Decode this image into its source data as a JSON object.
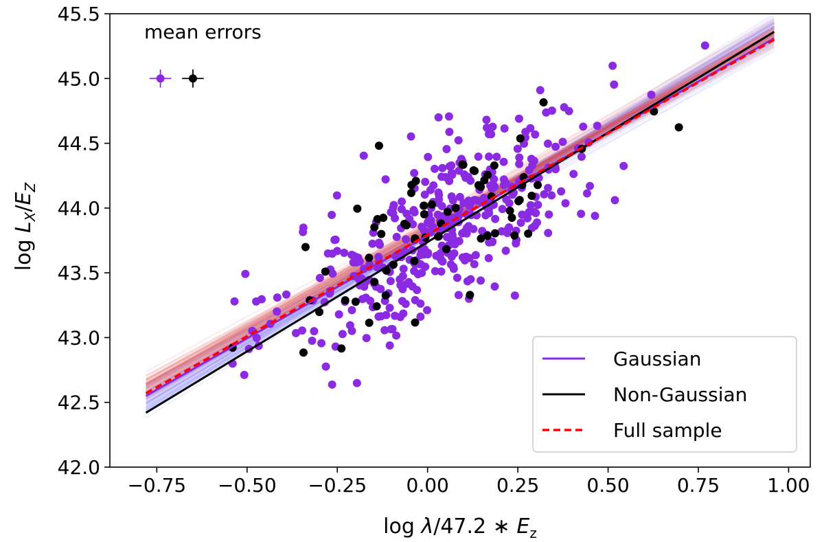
{
  "chart_data": {
    "type": "scatter",
    "xlabel_parts": [
      "log ",
      "λ",
      "/47.2 ∗ ",
      "E",
      "z"
    ],
    "ylabel_parts": [
      "log ",
      "L",
      "X",
      "/",
      "E",
      "Z"
    ],
    "xlim": [
      -0.88,
      1.06
    ],
    "ylim": [
      42.0,
      45.5
    ],
    "x_ticks": [
      -0.75,
      -0.5,
      -0.25,
      0.0,
      0.25,
      0.5,
      0.75,
      1.0
    ],
    "x_tick_labels": [
      "−0.75",
      "−0.50",
      "−0.25",
      "0.00",
      "0.25",
      "0.50",
      "0.75",
      "1.00"
    ],
    "y_ticks": [
      42.0,
      42.5,
      43.0,
      43.5,
      44.0,
      44.5,
      45.0,
      45.5
    ],
    "y_tick_labels": [
      "42.0",
      "42.5",
      "43.0",
      "43.5",
      "44.0",
      "44.5",
      "45.0",
      "45.5"
    ],
    "annotation": "mean errors",
    "mean_errors": [
      {
        "series": "Gaussian",
        "x": -0.74,
        "y": 45.0,
        "xerr": 0.03,
        "yerr": 0.07,
        "color": "#8a2be2"
      },
      {
        "series": "Non-Gaussian",
        "x": -0.65,
        "y": 45.0,
        "xerr": 0.03,
        "yerr": 0.07,
        "color": "#000000"
      }
    ],
    "legend": {
      "position": "lower-right",
      "entries": [
        {
          "label": "Gaussian",
          "color": "#8a2be2",
          "style": "solid"
        },
        {
          "label": "Non-Gaussian",
          "color": "#000000",
          "style": "solid"
        },
        {
          "label": "Full sample",
          "color": "#ff0000",
          "style": "dashed"
        }
      ]
    },
    "fit_lines": [
      {
        "series": "Gaussian",
        "x": [
          -0.78,
          0.96
        ],
        "y": [
          42.55,
          45.31
        ],
        "color": "#8a2be2",
        "style": "solid"
      },
      {
        "series": "Non-Gaussian",
        "x": [
          -0.78,
          0.96
        ],
        "y": [
          42.42,
          45.36
        ],
        "color": "#000000",
        "style": "solid"
      },
      {
        "series": "Full sample",
        "x": [
          -0.78,
          0.96
        ],
        "y": [
          42.57,
          45.3
        ],
        "color": "#ff0000",
        "style": "dashed"
      }
    ],
    "posterior_bands": [
      {
        "color": "#6a6aff",
        "slope_range": [
          1.52,
          1.75
        ],
        "pivot": [
          0.05,
          43.88
        ]
      },
      {
        "color": "#e04040",
        "slope_range": [
          1.5,
          1.64
        ],
        "pivot": [
          0.05,
          43.92
        ]
      }
    ],
    "gaussian_points_sample": {
      "count": 400,
      "x_mean": 0.06,
      "x_sd": 0.22,
      "scatter_sd": 0.32,
      "color": "#8a2be2"
    },
    "non_gaussian_points_sample": {
      "count": 70,
      "x_mean": 0.02,
      "x_sd": 0.23,
      "scatter_sd": 0.3,
      "color": "#000000"
    },
    "grid": false
  }
}
